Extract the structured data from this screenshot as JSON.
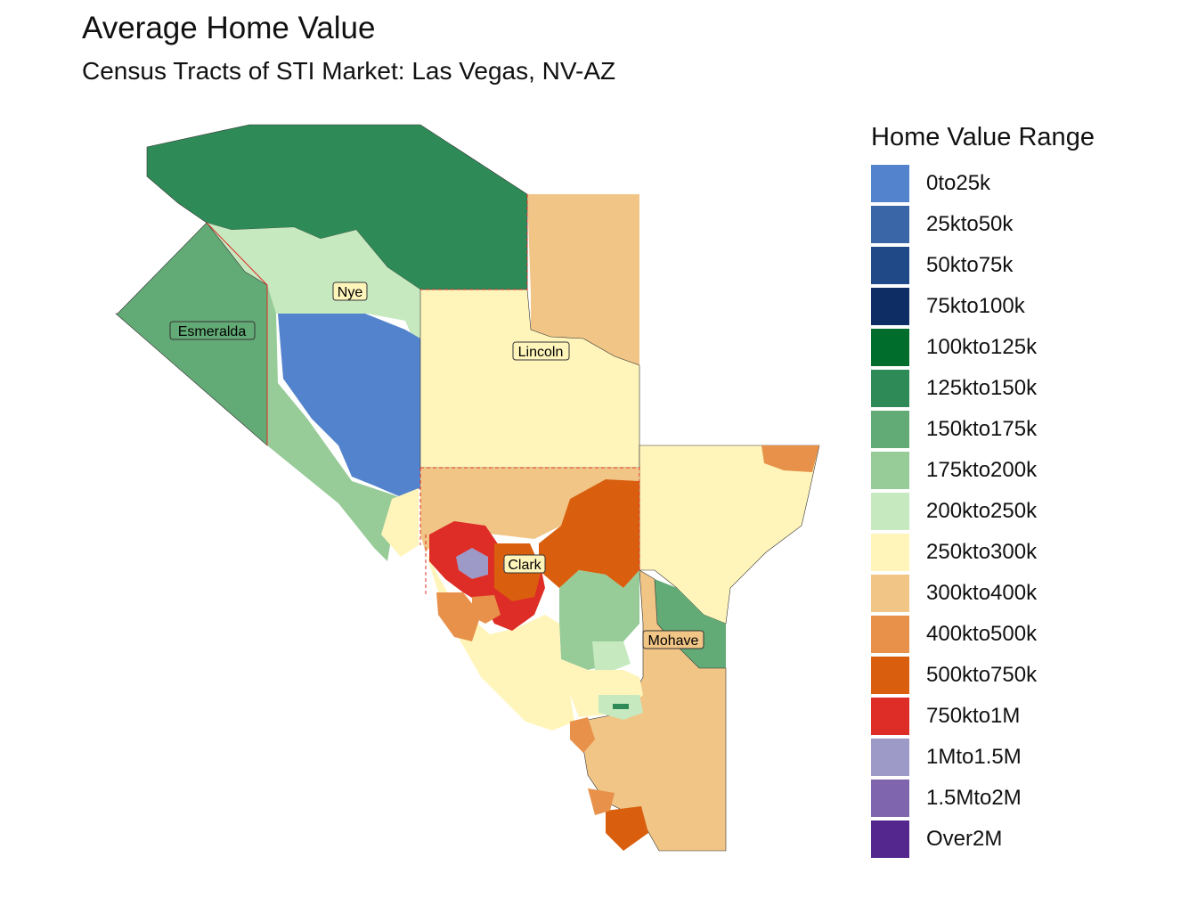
{
  "title": "Average Home Value",
  "subtitle": "Census Tracts of STI Market: Las Vegas, NV-AZ",
  "legend": {
    "title": "Home Value Range",
    "items": [
      {
        "label": "0to25k",
        "color": "#5383cd"
      },
      {
        "label": "25kto50k",
        "color": "#3a66a8"
      },
      {
        "label": "50kto75k",
        "color": "#204a87"
      },
      {
        "label": "75kto100k",
        "color": "#0e2d65"
      },
      {
        "label": "100kto125k",
        "color": "#006d2c"
      },
      {
        "label": "125kto150k",
        "color": "#2e8b57"
      },
      {
        "label": "150kto175k",
        "color": "#63ab76"
      },
      {
        "label": "175kto200k",
        "color": "#97cb98"
      },
      {
        "label": "200kto250k",
        "color": "#c7e9c0"
      },
      {
        "label": "250kto300k",
        "color": "#fff5bb"
      },
      {
        "label": "300kto400k",
        "color": "#f0c586"
      },
      {
        "label": "400kto500k",
        "color": "#e8914a"
      },
      {
        "label": "500kto750k",
        "color": "#d95f0e"
      },
      {
        "label": "750kto1M",
        "color": "#de2d26"
      },
      {
        "label": "1Mto1.5M",
        "color": "#9e9ac8"
      },
      {
        "label": "1.5Mto2M",
        "color": "#7e65ad"
      },
      {
        "label": "Over2M",
        "color": "#54278f"
      }
    ]
  },
  "counties": [
    {
      "name": "Nye"
    },
    {
      "name": "Esmeralda"
    },
    {
      "name": "Lincoln"
    },
    {
      "name": "Clark"
    },
    {
      "name": "Mohave"
    }
  ]
}
